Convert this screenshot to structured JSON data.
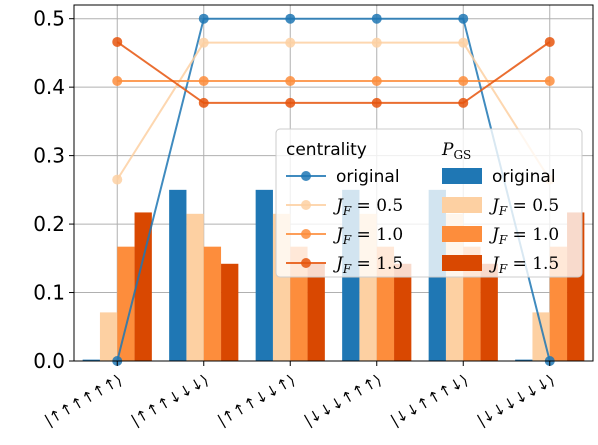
{
  "chart_data": {
    "type": "bar",
    "categories": [
      "|↑↑↑↑↑↑⟩",
      "|↑↑↑↓↓↓⟩",
      "|↑↑↑↓↓↑⟩",
      "|↓↓↓↑↑↑⟩",
      "|↓↓↑↑↑↓⟩",
      "|↓↓↓↓↓↓⟩"
    ],
    "ylim": [
      0,
      0.52
    ],
    "yticks": [
      0.0,
      0.1,
      0.2,
      0.3,
      0.4,
      0.5
    ],
    "ytick_labels": [
      "0.0",
      "0.1",
      "0.2",
      "0.3",
      "0.4",
      "0.5"
    ],
    "grid": true,
    "legend_placement": "center-right",
    "bar_series": [
      {
        "name": "original",
        "color": "#1f77b4",
        "values": [
          0.002,
          0.25,
          0.25,
          0.25,
          0.25,
          0.002
        ]
      },
      {
        "name": "J_F = 0.5",
        "color": "#fdd0a2",
        "values": [
          0.071,
          0.215,
          0.215,
          0.215,
          0.215,
          0.071
        ]
      },
      {
        "name": "J_F = 1.0",
        "color": "#fd8d3c",
        "values": [
          0.167,
          0.167,
          0.167,
          0.167,
          0.167,
          0.167
        ]
      },
      {
        "name": "J_F = 1.5",
        "color": "#d94801",
        "values": [
          0.217,
          0.142,
          0.142,
          0.142,
          0.142,
          0.217
        ]
      }
    ],
    "line_series": [
      {
        "name": "original",
        "color": "#1f77b4",
        "values": [
          0.0,
          0.5,
          0.5,
          0.5,
          0.5,
          0.0
        ]
      },
      {
        "name": "J_F = 0.5",
        "color": "#fdd0a2",
        "values": [
          0.265,
          0.465,
          0.465,
          0.465,
          0.465,
          0.265
        ]
      },
      {
        "name": "J_F = 1.0",
        "color": "#fd8d3c",
        "values": [
          0.409,
          0.409,
          0.409,
          0.409,
          0.409,
          0.409
        ]
      },
      {
        "name": "J_F = 1.5",
        "color": "#e6550d",
        "values": [
          0.466,
          0.377,
          0.377,
          0.377,
          0.377,
          0.466
        ]
      }
    ],
    "legend": {
      "centrality_title": "centrality",
      "pgs_title_main": "P",
      "pgs_title_sub": "GS",
      "labels": [
        {
          "text": "original",
          "math": false
        },
        {
          "var": "J",
          "sub": "F",
          "eq": " = 0.5",
          "math": true
        },
        {
          "var": "J",
          "sub": "F",
          "eq": " = 1.0",
          "math": true
        },
        {
          "var": "J",
          "sub": "F",
          "eq": " = 1.5",
          "math": true
        }
      ]
    }
  }
}
